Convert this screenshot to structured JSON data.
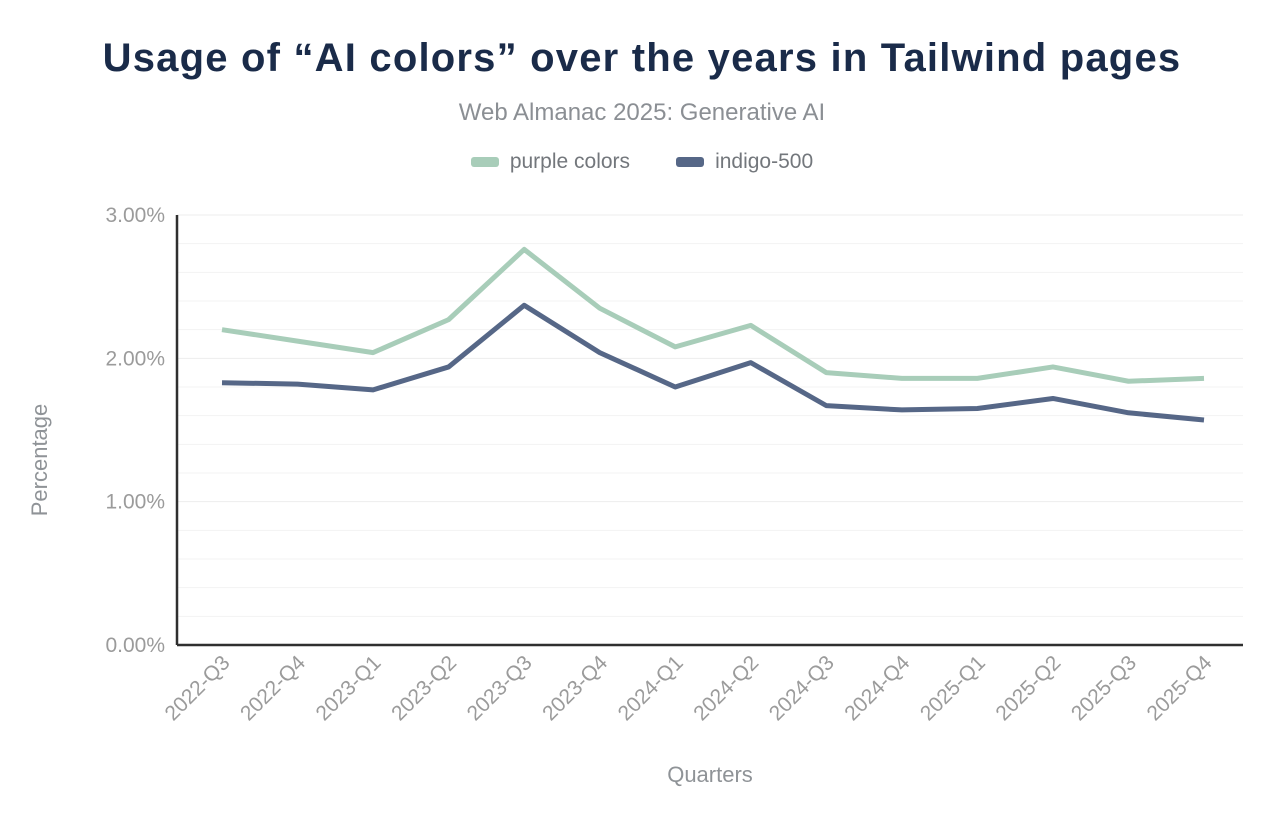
{
  "header": {
    "title": "Usage of “AI colors” over the years in Tailwind pages",
    "subtitle": "Web Almanac 2025: Generative AI"
  },
  "legend": [
    {
      "label": "purple colors",
      "color": "#a8cdb9"
    },
    {
      "label": "indigo-500",
      "color": "#566787"
    }
  ],
  "chart_data": {
    "type": "line",
    "title": "Usage of “AI colors” over the years in Tailwind pages",
    "subtitle": "Web Almanac 2025: Generative AI",
    "xlabel": "Quarters",
    "ylabel": "Percentage",
    "categories": [
      "2022-Q3",
      "2022-Q4",
      "2023-Q1",
      "2023-Q2",
      "2023-Q3",
      "2023-Q4",
      "2024-Q1",
      "2024-Q2",
      "2024-Q3",
      "2024-Q4",
      "2025-Q1",
      "2025-Q2",
      "2025-Q3",
      "2025-Q4"
    ],
    "series": [
      {
        "name": "purple colors",
        "color": "#a8cdb9",
        "values": [
          2.2,
          2.12,
          2.04,
          2.27,
          2.76,
          2.35,
          2.08,
          2.23,
          1.9,
          1.86,
          1.86,
          1.94,
          1.84,
          1.86
        ]
      },
      {
        "name": "indigo-500",
        "color": "#566787",
        "values": [
          1.83,
          1.82,
          1.78,
          1.94,
          2.37,
          2.04,
          1.8,
          1.97,
          1.67,
          1.64,
          1.65,
          1.72,
          1.62,
          1.57
        ]
      }
    ],
    "ylim": [
      0,
      3
    ],
    "yticks": [
      {
        "value": 0,
        "label": "0.00%"
      },
      {
        "value": 1,
        "label": "1.00%"
      },
      {
        "value": 2,
        "label": "2.00%"
      },
      {
        "value": 3,
        "label": "3.00%"
      }
    ],
    "grid": {
      "minor_step": 0.2,
      "orientation": "horizontal",
      "visible": true
    },
    "legend_position": "top",
    "x_tick_rotation": -45
  },
  "style": {
    "title_color": "#1a2b49",
    "subtitle_color": "#8b8f94",
    "legend_text_color": "#73777c",
    "axis_line_color": "#2f2f2f",
    "grid_minor_color": "#f3f3f3",
    "grid_major_color": "#ededed",
    "tick_label_color": "#9b9b9b",
    "axis_title_color": "#8f9397",
    "line_width": 5
  }
}
